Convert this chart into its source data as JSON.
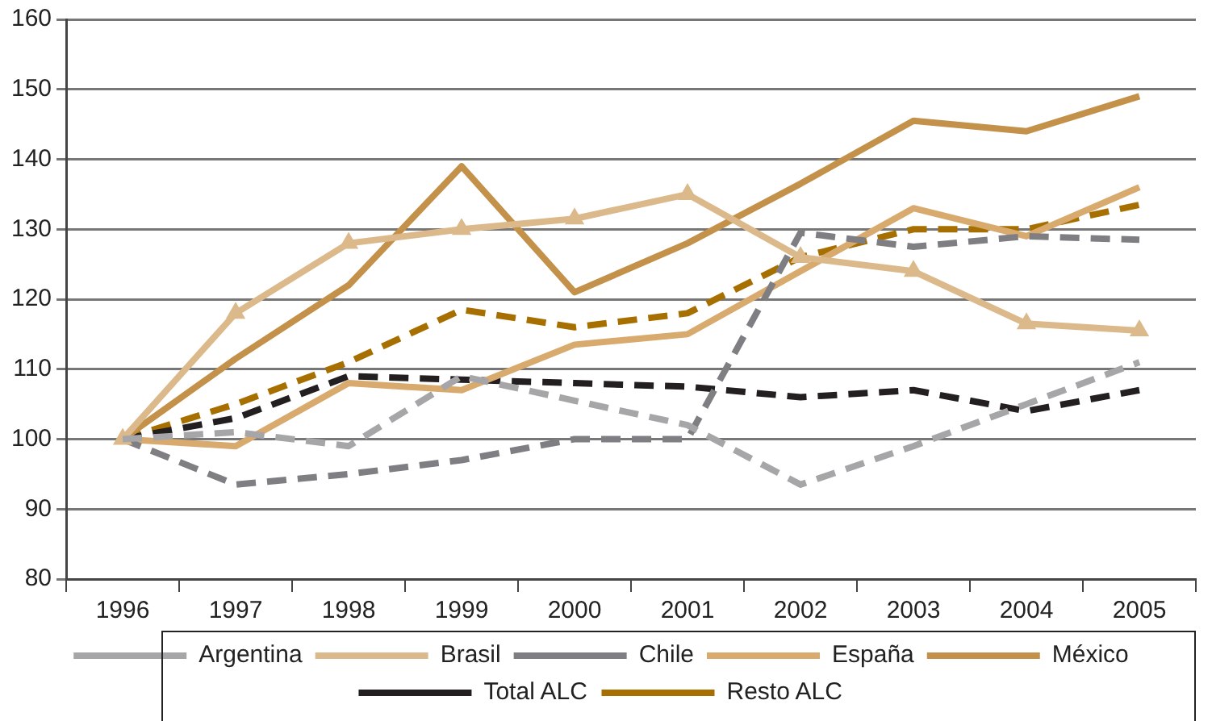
{
  "chart_data": {
    "type": "line",
    "categories": [
      "1996",
      "1997",
      "1998",
      "1999",
      "2000",
      "2001",
      "2002",
      "2003",
      "2004",
      "2005"
    ],
    "ylim": [
      80,
      160
    ],
    "yticks": [
      80,
      90,
      100,
      110,
      120,
      130,
      140,
      150,
      160
    ],
    "grid": "y",
    "legend": "bottom",
    "marker": "none",
    "series": [
      {
        "name": "Argentina",
        "color": "#a6a6a8",
        "line_style": "dashed",
        "values": [
          100,
          101,
          99,
          109,
          105.5,
          102,
          93.5,
          99,
          105,
          111
        ]
      },
      {
        "name": "Brasil",
        "color": "#dcb98a",
        "marker": "triangle",
        "values": [
          100,
          118,
          128,
          130,
          131.5,
          135,
          126,
          124,
          116.5,
          115.5
        ]
      },
      {
        "name": "Chile",
        "color": "#7f7f83",
        "line_style": "dashed",
        "values": [
          100,
          93.5,
          95,
          97,
          100,
          100,
          129.5,
          127.5,
          129,
          128.5
        ]
      },
      {
        "name": "España",
        "color": "#d8aa6e",
        "values": [
          100,
          99,
          108,
          107,
          113.5,
          115,
          124,
          133,
          129,
          136
        ]
      },
      {
        "name": "México",
        "color": "#c39149",
        "values": [
          100,
          111.5,
          122,
          139,
          121,
          128,
          136.5,
          145.5,
          144,
          149
        ]
      },
      {
        "name": "Total ALC",
        "color": "#231f20",
        "line_style": "dashed",
        "values": [
          100,
          103,
          109,
          108.5,
          108,
          107.5,
          106,
          107,
          104,
          107
        ]
      },
      {
        "name": "Resto ALC",
        "color": "#a66f00",
        "line_style": "dashed",
        "values": [
          100,
          105,
          111,
          118.5,
          116,
          118,
          126,
          130,
          130,
          133.5
        ]
      }
    ]
  }
}
